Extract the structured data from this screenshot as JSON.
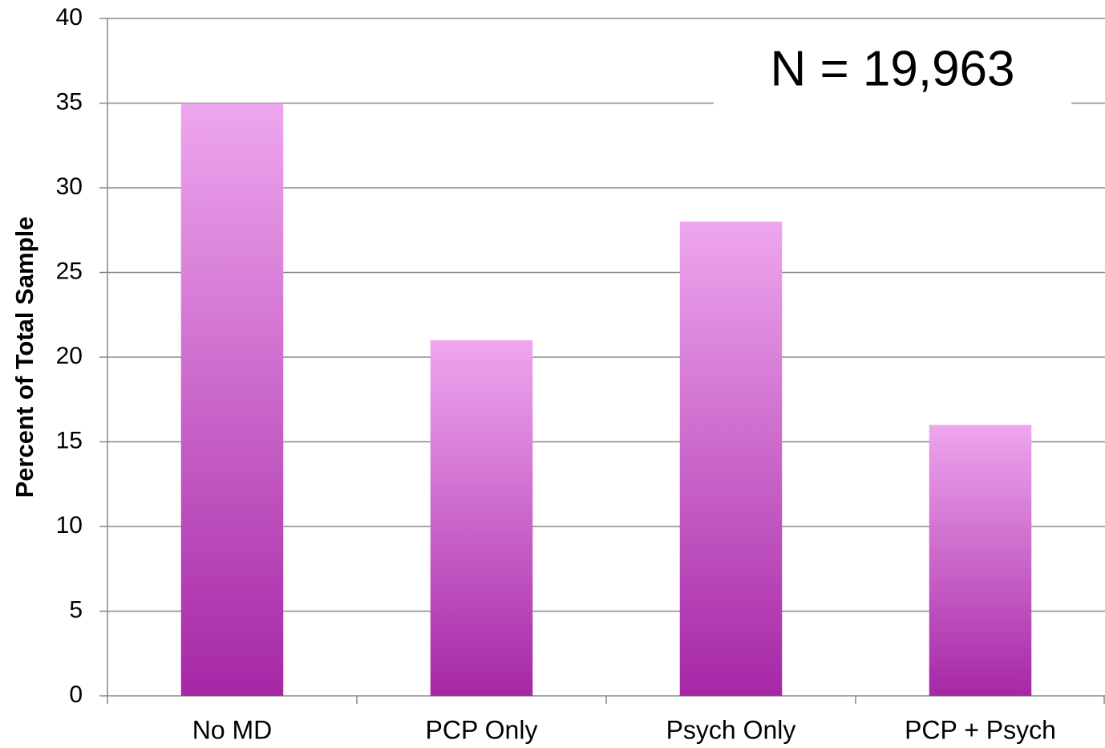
{
  "chart_data": {
    "type": "bar",
    "y_label": "Percent of Total Sample",
    "annotation": "N = 19,963",
    "categories": [
      "No MD",
      "PCP Only",
      "Psych Only",
      "PCP + Psych"
    ],
    "values": [
      35,
      21,
      28,
      16
    ],
    "gradient": [
      "#eea6ee",
      "#a627a6"
    ],
    "ylim": [
      0,
      40
    ],
    "yticks": [
      0,
      5,
      10,
      15,
      20,
      25,
      30,
      35,
      40
    ],
    "grid": true
  }
}
